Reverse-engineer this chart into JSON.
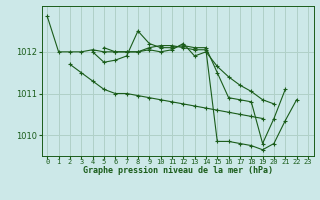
{
  "title": "Graphe pression niveau de la mer (hPa)",
  "bg_color": "#cce8e8",
  "grid_color": "#b0d0c8",
  "line_color": "#1a5c1a",
  "xlim": [
    -0.5,
    23.5
  ],
  "ylim": [
    1009.5,
    1013.1
  ],
  "yticks": [
    1010,
    1011,
    1012
  ],
  "xticks": [
    0,
    1,
    2,
    3,
    4,
    5,
    6,
    7,
    8,
    9,
    10,
    11,
    12,
    13,
    14,
    15,
    16,
    17,
    18,
    19,
    20,
    21,
    22,
    23
  ],
  "series": [
    [
      1012.85,
      1012.0,
      1012.0,
      1012.0,
      1012.05,
      1012.0,
      1012.0,
      1012.0,
      1012.0,
      1012.05,
      1012.0,
      1012.05,
      1012.2,
      1011.9,
      1012.0,
      1011.65,
      1011.4,
      1011.2,
      1011.05,
      1010.85,
      1010.75,
      null,
      null,
      null
    ],
    [
      null,
      null,
      1011.7,
      1011.5,
      1011.3,
      1011.1,
      1011.0,
      1011.0,
      1010.95,
      1010.9,
      1010.85,
      1010.8,
      1010.75,
      1010.7,
      1010.65,
      1010.6,
      1010.55,
      1010.5,
      1010.45,
      1010.4,
      null,
      null,
      null,
      null
    ],
    [
      null,
      null,
      null,
      null,
      1012.0,
      1011.75,
      1011.8,
      1011.9,
      1012.5,
      1012.2,
      1012.1,
      1012.1,
      1012.15,
      1012.1,
      1012.1,
      1011.5,
      1010.9,
      1010.85,
      1010.8,
      1009.8,
      1010.4,
      1011.1,
      null,
      null
    ],
    [
      null,
      null,
      null,
      null,
      null,
      1012.1,
      1012.0,
      1012.0,
      1012.0,
      1012.1,
      1012.15,
      1012.15,
      1012.1,
      1012.05,
      1012.05,
      1009.85,
      1009.85,
      1009.8,
      1009.75,
      1009.65,
      1009.8,
      1010.35,
      1010.85,
      null
    ]
  ]
}
